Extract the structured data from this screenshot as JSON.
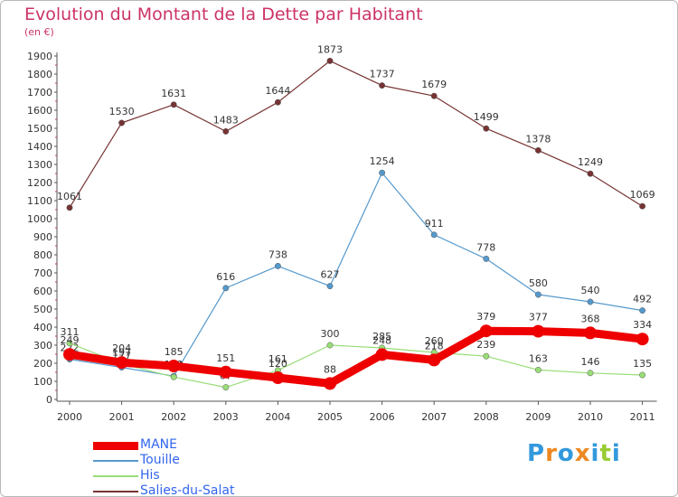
{
  "chart_data": {
    "type": "line",
    "title": "Evolution du Montant de la Dette par Habitant",
    "unit_label": "(en €)",
    "categories": [
      "2000",
      "2001",
      "2002",
      "2003",
      "2004",
      "2005",
      "2006",
      "2007",
      "2008",
      "2009",
      "2010",
      "2011"
    ],
    "ylim": [
      0,
      1900
    ],
    "yticks": [
      "0",
      "100",
      "200",
      "300",
      "400",
      "500",
      "600",
      "700",
      "800",
      "900",
      "1000",
      "1100",
      "1200",
      "1300",
      "1400",
      "1500",
      "1600",
      "1700",
      "1800",
      "1900"
    ],
    "grid": false,
    "legend_position": "bottom-left",
    "series": [
      {
        "name": "MANE",
        "color": "#ee0000",
        "values": [
          249,
          204,
          185,
          151,
          120,
          88,
          248,
          218,
          379,
          377,
          368,
          334
        ]
      },
      {
        "name": "Touille",
        "color": "#5599cc",
        "values": [
          222,
          177,
          129,
          616,
          738,
          627,
          1254,
          911,
          778,
          580,
          540,
          492
        ]
      },
      {
        "name": "His",
        "color": "#99dd77",
        "values": [
          311,
          197,
          124,
          67,
          161,
          300,
          285,
          260,
          239,
          163,
          146,
          135
        ]
      },
      {
        "name": "Salies-du-Salat",
        "color": "#773333",
        "values": [
          1061,
          1530,
          1631,
          1483,
          1644,
          1873,
          1737,
          1679,
          1499,
          1378,
          1249,
          1069
        ]
      }
    ]
  },
  "logo": {
    "letters": [
      {
        "ch": "P",
        "color": "#3399dd"
      },
      {
        "ch": "r",
        "color": "#ee8822"
      },
      {
        "ch": "o",
        "color": "#3399dd"
      },
      {
        "ch": "x",
        "color": "#ee8822"
      },
      {
        "ch": "i",
        "color": "#3399dd"
      },
      {
        "ch": "t",
        "color": "#99cc33"
      },
      {
        "ch": "i",
        "color": "#3399dd"
      }
    ]
  }
}
